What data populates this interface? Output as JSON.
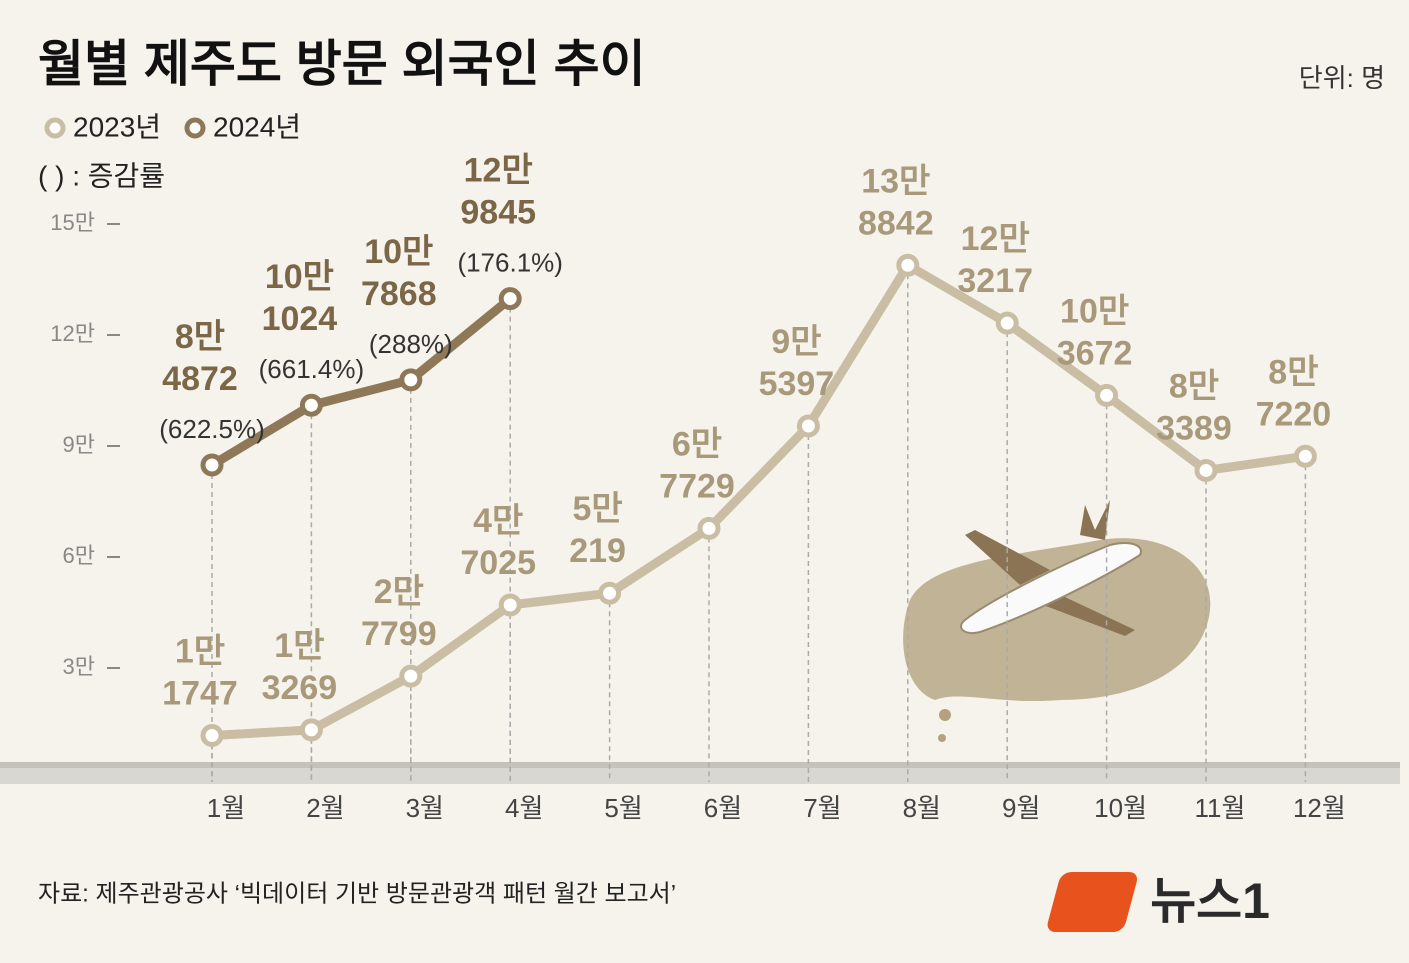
{
  "chart_data": {
    "type": "line",
    "title": "월별 제주도 방문 외국인 추이",
    "unit": "단위: 명",
    "note": "(   ) : 증감률",
    "source": "자료: 제주관광공사 ‘빅데이터 기반 방문관광객 패턴 월간 보고서’",
    "logo": "뉴스1",
    "categories": [
      "1월",
      "2월",
      "3월",
      "4월",
      "5월",
      "6월",
      "7월",
      "8월",
      "9월",
      "10월",
      "11월",
      "12월"
    ],
    "series": [
      {
        "name": "2023년",
        "color": "#c9bea3",
        "label_color": "#a8997a",
        "values": [
          11747,
          13269,
          27799,
          47025,
          50219,
          67729,
          95397,
          138842,
          123217,
          103672,
          83389,
          87220
        ],
        "value_labels": [
          [
            "1만",
            "1747"
          ],
          [
            "1만",
            "3269"
          ],
          [
            "2만",
            "7799"
          ],
          [
            "4만",
            "7025"
          ],
          [
            "5만",
            "219"
          ],
          [
            "6만",
            "7729"
          ],
          [
            "9만",
            "5397"
          ],
          [
            "13만",
            "8842"
          ],
          [
            "12만",
            "3217"
          ],
          [
            "10만",
            "3672"
          ],
          [
            "8만",
            "3389"
          ],
          [
            "8만",
            "7220"
          ]
        ]
      },
      {
        "name": "2024년",
        "color": "#8e7858",
        "label_color": "#7b6647",
        "values": [
          84872,
          101024,
          107868,
          129845,
          null,
          null,
          null,
          null,
          null,
          null,
          null,
          null
        ],
        "value_labels": [
          [
            "8만",
            "4872"
          ],
          [
            "10만",
            "1024"
          ],
          [
            "10만",
            "7868"
          ],
          [
            "12만",
            "9845"
          ],
          null,
          null,
          null,
          null,
          null,
          null,
          null,
          null
        ],
        "growth_labels": [
          "(622.5%)",
          "(661.4%)",
          "(288%)",
          "(176.1%)",
          null,
          null,
          null,
          null,
          null,
          null,
          null,
          null
        ]
      }
    ],
    "ylim": [
      0,
      150000
    ],
    "yticks": [
      {
        "value": 30000,
        "label": "3만"
      },
      {
        "value": 60000,
        "label": "6만"
      },
      {
        "value": 90000,
        "label": "9만"
      },
      {
        "value": 120000,
        "label": "12만"
      },
      {
        "value": 150000,
        "label": "15만"
      }
    ]
  }
}
